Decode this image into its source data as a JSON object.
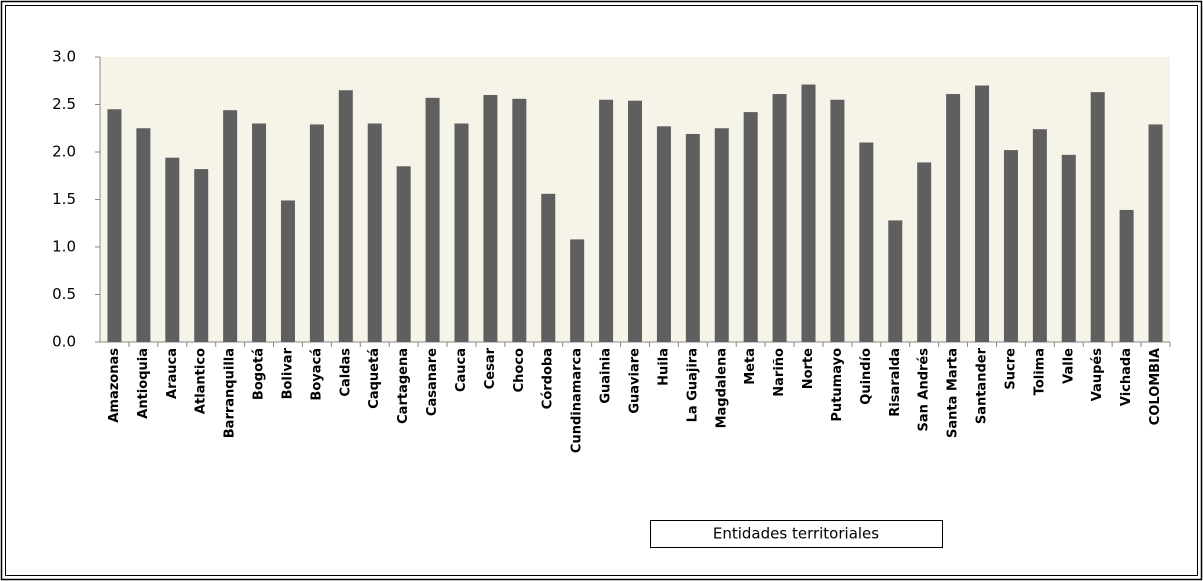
{
  "chart_data": {
    "type": "bar",
    "categories": [
      "Amazonas",
      "Antioquia",
      "Arauca",
      "Atlantico",
      "Barranquilla",
      "Bogotá",
      "Bolivar",
      "Boyacá",
      "Caldas",
      "Caquetá",
      "Cartagena",
      "Casanare",
      "Cauca",
      "Cesar",
      "Choco",
      "Córdoba",
      "Cundinamarca",
      "Guainia",
      "Guaviare",
      "Huila",
      "La Guajira",
      "Magdalena",
      "Meta",
      "Nariño",
      "Norte",
      "Putumayo",
      "Quindío",
      "Risaralda",
      "San Andrés",
      "Santa Marta",
      "Santander",
      "Sucre",
      "Tolima",
      "Valle",
      "Vaupés",
      "Vichada",
      "COLOMBIA"
    ],
    "values": [
      2.45,
      2.25,
      1.94,
      1.82,
      2.44,
      2.3,
      1.49,
      2.29,
      2.65,
      2.3,
      1.85,
      2.57,
      2.3,
      2.6,
      2.56,
      1.56,
      1.08,
      2.55,
      2.54,
      2.27,
      2.19,
      2.25,
      2.42,
      2.61,
      2.71,
      2.55,
      2.1,
      1.28,
      1.89,
      2.61,
      2.7,
      2.02,
      2.24,
      1.97,
      2.63,
      1.39,
      2.29
    ],
    "color": "#5f5f5f",
    "x_label": "Entidades territoriales",
    "ylim": [
      0,
      3
    ],
    "yticks": [
      {
        "value": 0,
        "label": "0.0"
      },
      0.5,
      {
        "value": 1,
        "label": "1.0"
      },
      1.5,
      {
        "value": 2,
        "label": "2.0"
      },
      2.5,
      {
        "value": 3,
        "label": "3.0"
      }
    ],
    "grid": false
  }
}
